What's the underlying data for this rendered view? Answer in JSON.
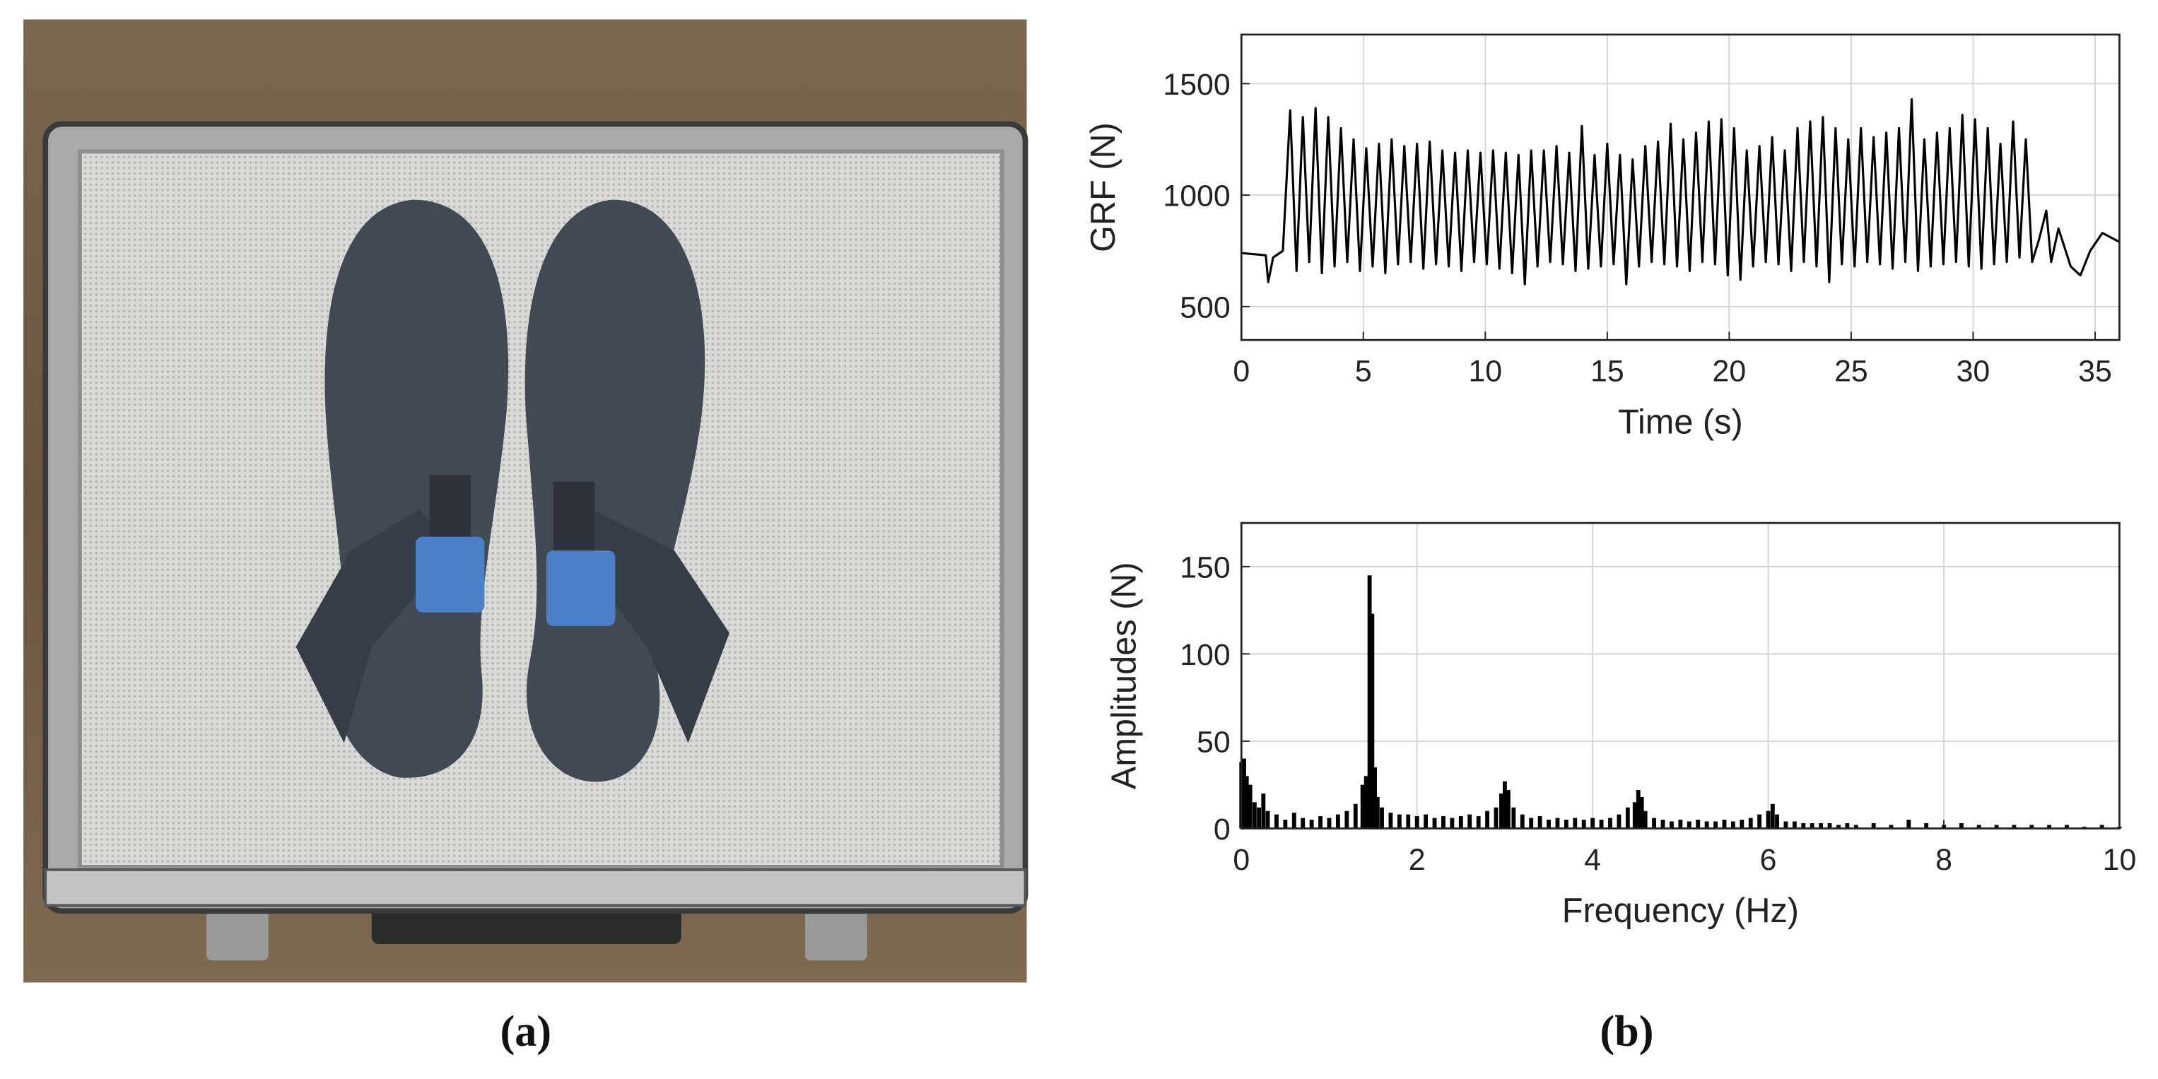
{
  "panel_labels": [
    "(a)",
    "(b)"
  ],
  "chart_data": [
    {
      "type": "line",
      "xlabel": "Time (s)",
      "ylabel": "GRF (N)",
      "color": "#000000",
      "grid": true,
      "xlim": [
        0,
        36
      ],
      "ylim": [
        350,
        1720
      ],
      "xticks": [
        0,
        5,
        10,
        15,
        20,
        25,
        30,
        35
      ],
      "yticks": [
        500,
        1000,
        1500
      ],
      "x": [
        0,
        0.5,
        1.0,
        1.1,
        1.3,
        1.7,
        2,
        2.26,
        2.52,
        2.78,
        3.04,
        3.3,
        3.56,
        3.82,
        4.08,
        4.34,
        4.6,
        4.86,
        5.12,
        5.38,
        5.64,
        5.9,
        6.16,
        6.42,
        6.68,
        6.94,
        7.2,
        7.46,
        7.72,
        7.98,
        8.24,
        8.5,
        8.76,
        9.02,
        9.28,
        9.54,
        9.8,
        10.06,
        10.32,
        10.58,
        10.84,
        11.1,
        11.36,
        11.62,
        11.88,
        12.14,
        12.4,
        12.66,
        12.92,
        13.18,
        13.44,
        13.7,
        13.96,
        14.22,
        14.48,
        14.74,
        15,
        15.26,
        15.52,
        15.78,
        16.04,
        16.3,
        16.56,
        16.82,
        17.08,
        17.34,
        17.6,
        17.86,
        18.12,
        18.38,
        18.64,
        18.9,
        19.16,
        19.42,
        19.68,
        19.94,
        20.2,
        20.46,
        20.72,
        20.98,
        21.24,
        21.5,
        21.76,
        22.02,
        22.28,
        22.54,
        22.8,
        23.06,
        23.32,
        23.58,
        23.84,
        24.1,
        24.36,
        24.62,
        24.88,
        25.14,
        25.4,
        25.66,
        25.92,
        26.18,
        26.44,
        26.7,
        26.96,
        27.22,
        27.48,
        27.74,
        28,
        28.26,
        28.52,
        28.78,
        29.04,
        29.3,
        29.56,
        29.82,
        30.08,
        30.34,
        30.6,
        30.86,
        31.12,
        31.38,
        31.64,
        31.9,
        32.16,
        32.42,
        32.7,
        33.0,
        33.2,
        33.5,
        34.0,
        34.4,
        34.8,
        35.3,
        36
      ],
      "values": [
        740,
        735,
        730,
        610,
        720,
        750,
        1380,
        660,
        1350,
        700,
        1390,
        650,
        1350,
        680,
        1300,
        700,
        1250,
        660,
        1210,
        680,
        1230,
        650,
        1250,
        690,
        1220,
        700,
        1230,
        670,
        1240,
        690,
        1200,
        680,
        1190,
        660,
        1200,
        700,
        1190,
        690,
        1200,
        670,
        1190,
        650,
        1180,
        600,
        1200,
        680,
        1200,
        700,
        1220,
        690,
        1190,
        660,
        1310,
        670,
        1180,
        680,
        1230,
        690,
        1180,
        600,
        1160,
        680,
        1220,
        700,
        1240,
        690,
        1320,
        680,
        1250,
        660,
        1280,
        700,
        1330,
        690,
        1340,
        640,
        1300,
        620,
        1200,
        680,
        1220,
        700,
        1260,
        690,
        1200,
        660,
        1300,
        700,
        1330,
        680,
        1350,
        610,
        1300,
        690,
        1250,
        680,
        1300,
        700,
        1260,
        690,
        1280,
        670,
        1300,
        700,
        1430,
        660,
        1250,
        680,
        1280,
        690,
        1300,
        700,
        1360,
        680,
        1340,
        670,
        1300,
        690,
        1230,
        700,
        1330,
        720,
        1250,
        700,
        800,
        930,
        700,
        850,
        680,
        640,
        750,
        830,
        790
      ]
    },
    {
      "type": "bar",
      "xlabel": "Frequency (Hz)",
      "ylabel": "Amplitudes (N)",
      "color": "#000000",
      "grid": true,
      "xlim": [
        0,
        10
      ],
      "ylim": [
        0,
        175
      ],
      "xticks": [
        0,
        2,
        4,
        6,
        8,
        10
      ],
      "yticks": [
        0,
        50,
        100,
        150
      ],
      "x": [
        0,
        0.03,
        0.06,
        0.1,
        0.15,
        0.2,
        0.25,
        0.3,
        0.4,
        0.5,
        0.6,
        0.7,
        0.8,
        0.9,
        1.0,
        1.1,
        1.2,
        1.3,
        1.38,
        1.42,
        1.46,
        1.49,
        1.52,
        1.55,
        1.6,
        1.7,
        1.8,
        1.9,
        2.0,
        2.1,
        2.2,
        2.3,
        2.4,
        2.5,
        2.6,
        2.7,
        2.8,
        2.9,
        2.96,
        3.0,
        3.04,
        3.1,
        3.2,
        3.3,
        3.4,
        3.5,
        3.6,
        3.7,
        3.8,
        3.9,
        4.0,
        4.1,
        4.2,
        4.3,
        4.4,
        4.48,
        4.52,
        4.56,
        4.6,
        4.7,
        4.8,
        4.9,
        5.0,
        5.1,
        5.2,
        5.3,
        5.4,
        5.5,
        5.6,
        5.7,
        5.8,
        5.9,
        6.0,
        6.05,
        6.1,
        6.2,
        6.3,
        6.4,
        6.5,
        6.6,
        6.7,
        6.8,
        6.9,
        7.0,
        7.2,
        7.4,
        7.6,
        7.8,
        8.0,
        8.2,
        8.4,
        8.6,
        8.8,
        9.0,
        9.2,
        9.4,
        9.6,
        9.8,
        10.0
      ],
      "values": [
        38,
        40,
        30,
        25,
        15,
        12,
        20,
        10,
        8,
        5,
        9,
        6,
        5,
        7,
        6,
        8,
        10,
        14,
        25,
        30,
        145,
        123,
        35,
        18,
        12,
        9,
        8,
        8,
        7,
        8,
        6,
        7,
        6,
        7,
        8,
        7,
        10,
        12,
        20,
        27,
        22,
        12,
        8,
        6,
        7,
        5,
        6,
        5,
        6,
        5,
        6,
        5,
        6,
        8,
        12,
        15,
        22,
        18,
        10,
        6,
        5,
        4,
        5,
        4,
        5,
        4,
        4,
        5,
        4,
        5,
        6,
        8,
        10,
        14,
        8,
        4,
        4,
        3,
        3,
        3,
        3,
        2,
        3,
        2,
        3,
        2,
        5,
        3,
        2,
        3,
        2,
        2,
        2,
        2,
        2,
        2,
        1,
        2,
        1
      ]
    }
  ]
}
